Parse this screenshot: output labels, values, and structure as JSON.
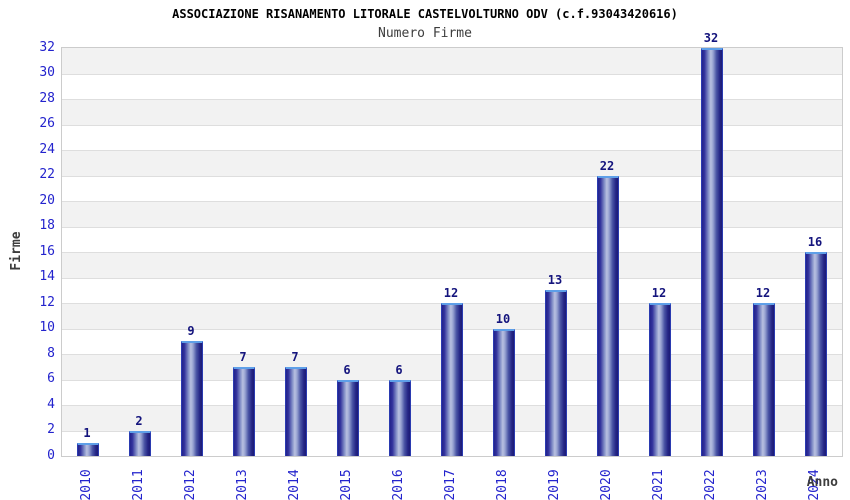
{
  "title": "ASSOCIAZIONE RISANAMENTO LITORALE CASTELVOLTURNO ODV (c.f.93043420616)",
  "subtitle": "Numero Firme",
  "chart_data": {
    "type": "bar",
    "categories": [
      "2010",
      "2011",
      "2012",
      "2013",
      "2014",
      "2015",
      "2016",
      "2017",
      "2018",
      "2019",
      "2020",
      "2021",
      "2022",
      "2023",
      "2024"
    ],
    "values": [
      1,
      2,
      9,
      7,
      7,
      6,
      6,
      12,
      10,
      13,
      22,
      12,
      32,
      12,
      16
    ],
    "title": "ASSOCIAZIONE RISANAMENTO LITORALE CASTELVOLTURNO ODV (c.f.93043420616)",
    "subtitle": "Numero Firme",
    "xlabel": "Anno",
    "ylabel": "Firme",
    "ylim": [
      0,
      32
    ],
    "ytick_step": 2,
    "grid": true,
    "legend_position": "none",
    "bar_value_labels": true,
    "colors": {
      "tick_label": "#2323cd",
      "value_label": "#14147d",
      "bar_dark": "#1d1d75",
      "bar_light": "#b8c0e0",
      "bar_side_edge": "#2a3ab0",
      "bar_top_edge": "#5e9fe8",
      "band_gray": "#f2f2f2",
      "band_white": "#ffffff",
      "gridline": "#dedede",
      "plot_border": "#cccccc",
      "title_color": "#000000",
      "axis_title_color": "#3d3d3d"
    }
  }
}
